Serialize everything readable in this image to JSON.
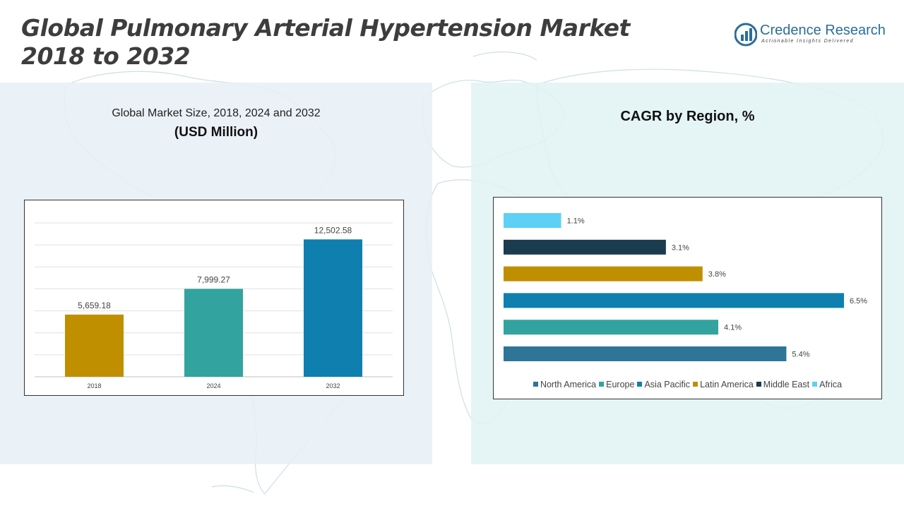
{
  "page": {
    "title_line1": "Global Pulmonary Arterial Hypertension Market",
    "title_line2": "2018 to 2032"
  },
  "logo": {
    "name": "Credence Research",
    "tagline": "Actionable Insights Delivered",
    "icon": "credence-logo-icon",
    "color": "#2b6d99"
  },
  "left_panel": {
    "title": "Global Market Size, 2018, 2024 and 2032",
    "subtitle": "(USD Million)"
  },
  "right_panel": {
    "title": "CAGR by Region, %"
  },
  "chart_data": [
    {
      "type": "bar",
      "categories": [
        "2018",
        "2024",
        "2032"
      ],
      "values": [
        5659.18,
        7999.27,
        12502.58
      ],
      "value_labels": [
        "5,659.18",
        "7,999.27",
        "12,502.58"
      ],
      "colors": [
        "#bf8f00",
        "#33a39f",
        "#0f7fb0"
      ],
      "ylim": [
        0,
        14000
      ],
      "grid": true,
      "gridline_count": 7
    },
    {
      "type": "bar",
      "orientation": "horizontal",
      "unit": "%",
      "series": [
        {
          "name": "North America",
          "value": 5.4,
          "label": "5.4%",
          "color": "#2e7598"
        },
        {
          "name": "Europe",
          "value": 4.1,
          "label": "4.1%",
          "color": "#33a39f"
        },
        {
          "name": "Asia Pacific",
          "value": 6.5,
          "label": "6.5%",
          "color": "#0f7fb0"
        },
        {
          "name": "Latin America",
          "value": 3.8,
          "label": "3.8%",
          "color": "#bf8f00"
        },
        {
          "name": "Middle East",
          "value": 3.1,
          "label": "3.1%",
          "color": "#1a3c4e"
        },
        {
          "name": "Africa",
          "value": 1.1,
          "label": "1.1%",
          "color": "#5fd0f5"
        }
      ],
      "order_top_to_bottom": [
        "Africa",
        "Middle East",
        "Latin America",
        "Asia Pacific",
        "Europe",
        "North America"
      ],
      "xlim": [
        0,
        6.5
      ],
      "grid": false,
      "legend_position": "bottom"
    }
  ]
}
